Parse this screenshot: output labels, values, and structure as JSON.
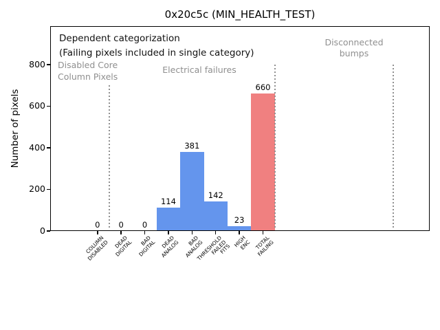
{
  "chart_data": {
    "type": "bar",
    "title": "0x20c5c (MIN_HEALTH_TEST)",
    "xlabel": "",
    "ylabel": "Number of pixels",
    "categories": [
      "COLUMN\nDISABLED",
      "DEAD\nDIGITAL",
      "BAD\nDIGITAL",
      "DEAD\nANALOG",
      "BAD\nANALOG",
      "THRESHOLD\nFAILED\nFITS",
      "HIGH\nENC",
      "TOTAL\nFAILING"
    ],
    "values": [
      0,
      0,
      0,
      114,
      381,
      142,
      23,
      660
    ],
    "value_labels": [
      "0",
      "0",
      "0",
      "114",
      "381",
      "142",
      "23",
      "660"
    ],
    "bar_colors": [
      "#6495ED",
      "#6495ED",
      "#6495ED",
      "#6495ED",
      "#6495ED",
      "#6495ED",
      "#6495ED",
      "#F08080"
    ],
    "yticks": [
      0,
      200,
      400,
      600,
      800
    ],
    "ylim": [
      0,
      985
    ],
    "xlim": [
      -2,
      14.05
    ],
    "grid": false,
    "legend": "none",
    "bar_width": 1.0,
    "separators": [
      {
        "x": 0.5,
        "ymax": 700
      },
      {
        "x": 7.5,
        "ymax": 800
      },
      {
        "x": 12.5,
        "ymax": 800
      }
    ],
    "separator_color": "#909090",
    "annotation_gray": "#8f8f8f",
    "annotations": {
      "dependent_note": "Dependent categorization\n(Failing pixels included in single category)",
      "disabled_core": "Disabled Core\nColumn Pixels",
      "electrical": "Electrical failures",
      "disconnected": "Disconnected\nbumps"
    }
  }
}
